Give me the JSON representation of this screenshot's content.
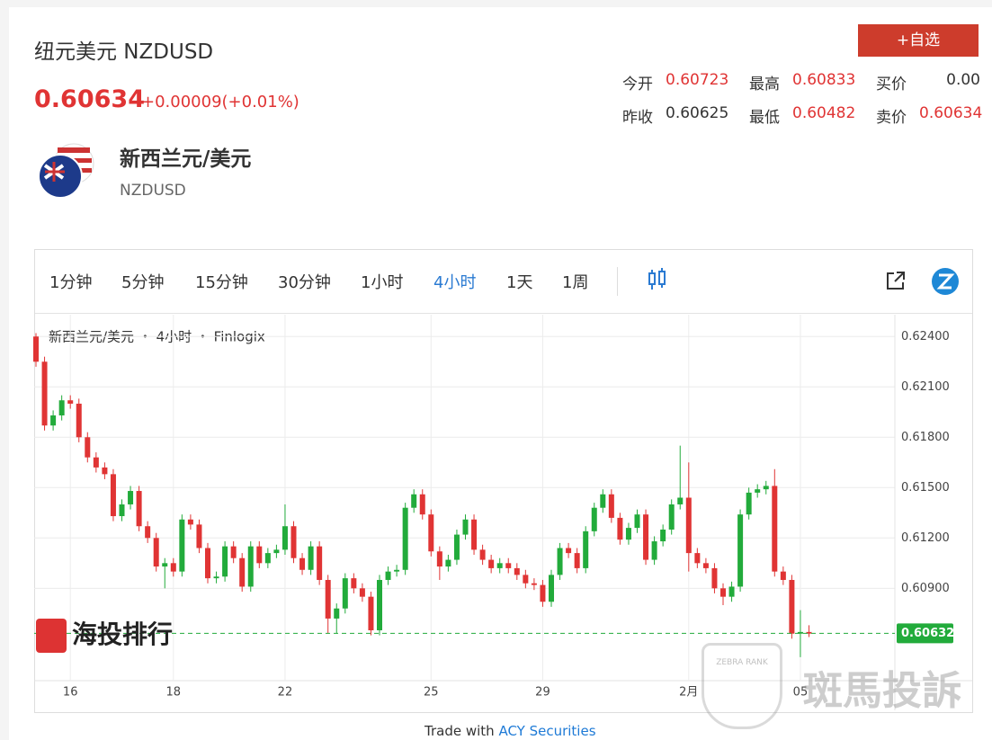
{
  "header": {
    "title": "纽元美元 NZDUSD",
    "price": "0.60634",
    "change": "+0.00009(+0.01%)",
    "button": "+自选"
  },
  "quotes": [
    {
      "label": "今开",
      "value": "0.60723"
    },
    {
      "label": "最高",
      "value": "0.60833"
    },
    {
      "label": "买价",
      "value": "0.00"
    },
    {
      "label": "昨收",
      "value": "0.60625"
    },
    {
      "label": "最低",
      "value": "0.60482"
    },
    {
      "label": "卖价",
      "value": "0.60634"
    }
  ],
  "product": {
    "name": "新西兰元/美元",
    "code": "NZDUSD"
  },
  "timeframes": {
    "items": [
      "1分钟",
      "5分钟",
      "15分钟",
      "30分钟",
      "1小时",
      "4小时",
      "1天",
      "1周"
    ],
    "active": 5
  },
  "chart_data": {
    "type": "candlestick",
    "legend": "新西兰元/美元 ・ 4小时 ・ Finlogix",
    "up_color": "#22ab3b",
    "down_color": "#e03434",
    "grid": true,
    "categories": [
      null,
      null,
      null,
      null,
      "16",
      null,
      null,
      null,
      null,
      null,
      null,
      null,
      null,
      null,
      null,
      null,
      "18",
      null,
      null,
      null,
      null,
      null,
      null,
      null,
      null,
      null,
      null,
      null,
      null,
      "22",
      null,
      null,
      null,
      null,
      null,
      null,
      null,
      null,
      null,
      null,
      null,
      null,
      null,
      null,
      null,
      null,
      "25",
      null,
      null,
      null,
      null,
      null,
      null,
      null,
      null,
      null,
      null,
      null,
      null,
      "29",
      null,
      null,
      null,
      null,
      null,
      null,
      null,
      null,
      null,
      null,
      null,
      null,
      null,
      null,
      null,
      null,
      "2月",
      null,
      null,
      null,
      null,
      null,
      null,
      null,
      null,
      null,
      null,
      null,
      null,
      "05",
      null
    ],
    "ohlc": [
      [
        0.624,
        0.6242,
        0.6222,
        0.6225
      ],
      [
        0.6225,
        0.6228,
        0.6184,
        0.6187
      ],
      [
        0.6187,
        0.6196,
        0.6184,
        0.6193
      ],
      [
        0.6193,
        0.6205,
        0.619,
        0.6202
      ],
      [
        0.6202,
        0.6205,
        0.6197,
        0.62
      ],
      [
        0.62,
        0.6203,
        0.6177,
        0.618
      ],
      [
        0.618,
        0.6183,
        0.6165,
        0.6168
      ],
      [
        0.6168,
        0.6171,
        0.6159,
        0.6162
      ],
      [
        0.6162,
        0.6165,
        0.6155,
        0.6158
      ],
      [
        0.6158,
        0.6161,
        0.613,
        0.6133
      ],
      [
        0.6133,
        0.6143,
        0.613,
        0.614
      ],
      [
        0.614,
        0.6151,
        0.6137,
        0.6148
      ],
      [
        0.6148,
        0.6151,
        0.6124,
        0.6127
      ],
      [
        0.6127,
        0.613,
        0.6117,
        0.612
      ],
      [
        0.612,
        0.6123,
        0.61,
        0.6103
      ],
      [
        0.6103,
        0.6108,
        0.609,
        0.6105
      ],
      [
        0.6105,
        0.6108,
        0.6097,
        0.61
      ],
      [
        0.61,
        0.6134,
        0.6097,
        0.6131
      ],
      [
        0.6131,
        0.6134,
        0.6125,
        0.6128
      ],
      [
        0.6128,
        0.6131,
        0.6111,
        0.6114
      ],
      [
        0.6114,
        0.6117,
        0.6093,
        0.6096
      ],
      [
        0.6096,
        0.61,
        0.6093,
        0.6097
      ],
      [
        0.6097,
        0.6118,
        0.6094,
        0.6115
      ],
      [
        0.6115,
        0.6118,
        0.6105,
        0.6108
      ],
      [
        0.6108,
        0.6111,
        0.6088,
        0.6091
      ],
      [
        0.6091,
        0.6118,
        0.6088,
        0.6115
      ],
      [
        0.6115,
        0.6118,
        0.6102,
        0.6105
      ],
      [
        0.6105,
        0.6114,
        0.6102,
        0.6111
      ],
      [
        0.6111,
        0.6116,
        0.6108,
        0.6113
      ],
      [
        0.6113,
        0.614,
        0.611,
        0.6127
      ],
      [
        0.6127,
        0.613,
        0.6105,
        0.6108
      ],
      [
        0.6108,
        0.6111,
        0.6098,
        0.6101
      ],
      [
        0.6101,
        0.6118,
        0.6098,
        0.6115
      ],
      [
        0.6115,
        0.6118,
        0.6092,
        0.6095
      ],
      [
        0.6095,
        0.6098,
        0.6063,
        0.6072
      ],
      [
        0.6072,
        0.6081,
        0.6063,
        0.6078
      ],
      [
        0.6078,
        0.6099,
        0.6075,
        0.6096
      ],
      [
        0.6096,
        0.6099,
        0.6087,
        0.609
      ],
      [
        0.609,
        0.6093,
        0.6082,
        0.6085
      ],
      [
        0.6085,
        0.6088,
        0.6062,
        0.6065
      ],
      [
        0.6065,
        0.6098,
        0.6062,
        0.6095
      ],
      [
        0.6095,
        0.6103,
        0.6092,
        0.61
      ],
      [
        0.61,
        0.6104,
        0.6097,
        0.6101
      ],
      [
        0.6101,
        0.6141,
        0.6098,
        0.6138
      ],
      [
        0.6138,
        0.6149,
        0.6135,
        0.6146
      ],
      [
        0.6146,
        0.6149,
        0.6131,
        0.6134
      ],
      [
        0.6134,
        0.6137,
        0.6109,
        0.6112
      ],
      [
        0.6112,
        0.6115,
        0.6095,
        0.6103
      ],
      [
        0.6103,
        0.611,
        0.61,
        0.6107
      ],
      [
        0.6107,
        0.6125,
        0.6104,
        0.6122
      ],
      [
        0.6122,
        0.6134,
        0.6119,
        0.6131
      ],
      [
        0.6131,
        0.6134,
        0.611,
        0.6113
      ],
      [
        0.6113,
        0.6116,
        0.6104,
        0.6107
      ],
      [
        0.6107,
        0.611,
        0.6099,
        0.6102
      ],
      [
        0.6102,
        0.6108,
        0.6099,
        0.6105
      ],
      [
        0.6105,
        0.6108,
        0.6099,
        0.6102
      ],
      [
        0.6102,
        0.6105,
        0.6095,
        0.6098
      ],
      [
        0.6098,
        0.6101,
        0.609,
        0.6093
      ],
      [
        0.6093,
        0.6096,
        0.6089,
        0.6092
      ],
      [
        0.6092,
        0.6095,
        0.6079,
        0.6082
      ],
      [
        0.6082,
        0.6101,
        0.6079,
        0.6098
      ],
      [
        0.6098,
        0.6117,
        0.6095,
        0.6114
      ],
      [
        0.6114,
        0.6117,
        0.6108,
        0.6111
      ],
      [
        0.6111,
        0.6114,
        0.6099,
        0.6102
      ],
      [
        0.6102,
        0.6127,
        0.6099,
        0.6124
      ],
      [
        0.6124,
        0.6141,
        0.6121,
        0.6138
      ],
      [
        0.6138,
        0.6149,
        0.6135,
        0.6146
      ],
      [
        0.6146,
        0.6149,
        0.6129,
        0.6132
      ],
      [
        0.6132,
        0.6135,
        0.6116,
        0.6119
      ],
      [
        0.6119,
        0.6129,
        0.6116,
        0.6126
      ],
      [
        0.6126,
        0.6137,
        0.6123,
        0.6134
      ],
      [
        0.6134,
        0.6137,
        0.6104,
        0.6107
      ],
      [
        0.6107,
        0.6121,
        0.6104,
        0.6118
      ],
      [
        0.6118,
        0.6128,
        0.6115,
        0.6125
      ],
      [
        0.6125,
        0.6143,
        0.6122,
        0.614
      ],
      [
        0.614,
        0.6175,
        0.6137,
        0.6144
      ],
      [
        0.6144,
        0.6165,
        0.61,
        0.6111
      ],
      [
        0.6111,
        0.6114,
        0.6102,
        0.6105
      ],
      [
        0.6105,
        0.6108,
        0.6099,
        0.6102
      ],
      [
        0.6102,
        0.6105,
        0.6087,
        0.609
      ],
      [
        0.609,
        0.6093,
        0.608,
        0.6085
      ],
      [
        0.6085,
        0.6094,
        0.6082,
        0.6091
      ],
      [
        0.6091,
        0.6137,
        0.6088,
        0.6134
      ],
      [
        0.6134,
        0.615,
        0.6131,
        0.6147
      ],
      [
        0.6147,
        0.6152,
        0.6144,
        0.6149
      ],
      [
        0.6149,
        0.6154,
        0.6146,
        0.6151
      ],
      [
        0.6151,
        0.6161,
        0.6097,
        0.61
      ],
      [
        0.61,
        0.6103,
        0.6092,
        0.6095
      ],
      [
        0.6095,
        0.6098,
        0.606,
        0.6063
      ],
      [
        0.6063,
        0.6077,
        0.6049,
        0.6064
      ],
      [
        0.6064,
        0.6068,
        0.6061,
        0.6063
      ]
    ],
    "ylim": [
      0.6035,
      0.6253
    ],
    "yticks": [
      {
        "value": 0.624,
        "label": "0.62400"
      },
      {
        "value": 0.621,
        "label": "0.62100"
      },
      {
        "value": 0.618,
        "label": "0.61800"
      },
      {
        "value": 0.615,
        "label": "0.61500"
      },
      {
        "value": 0.612,
        "label": "0.61200"
      },
      {
        "value": 0.609,
        "label": "0.60900"
      }
    ],
    "last_price": {
      "value": 0.60632,
      "label": "0.60632"
    }
  },
  "watermarks": {
    "left": "海投排行",
    "right": "斑馬投訴",
    "badge": "ZEBRA RANK"
  },
  "footer": {
    "prefix": "Trade with",
    "link": "ACY Securities"
  }
}
